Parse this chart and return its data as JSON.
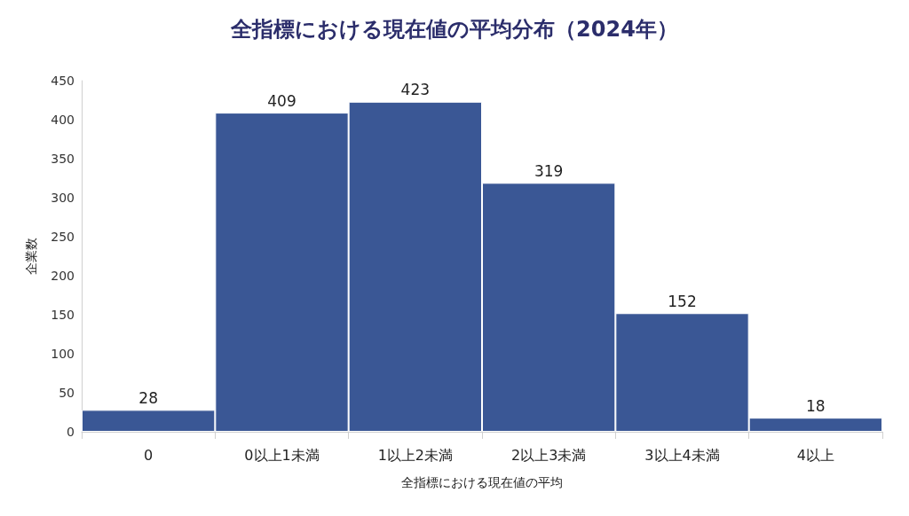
{
  "chart_data": {
    "type": "bar",
    "title": "全指標における現在値の平均分布（2024年）",
    "xlabel": "全指標における現在値の平均",
    "ylabel": "企業数",
    "categories": [
      "0",
      "0以上1未満",
      "1以上2未満",
      "2以上3未満",
      "3以上4未満",
      "4以上"
    ],
    "values": [
      28,
      409,
      423,
      319,
      152,
      18
    ],
    "color": "#3a5795",
    "ylim": [
      0,
      450
    ],
    "yticks": [
      0,
      50,
      100,
      150,
      200,
      250,
      300,
      350,
      400,
      450
    ],
    "grid": false,
    "data_labels": true
  }
}
